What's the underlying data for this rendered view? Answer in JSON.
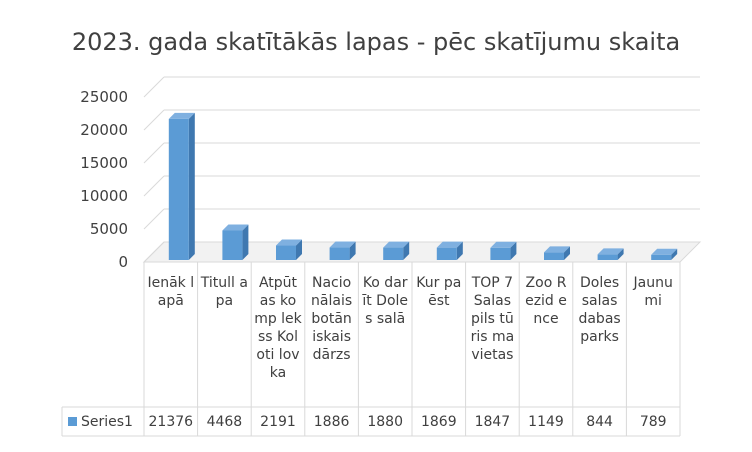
{
  "chart_data": {
    "type": "bar",
    "title": "2023. gada skatītākās lapas - pēc skatījumu skaita",
    "categories": [
      "Ienāk lapā",
      "Titull apa",
      "Atpūt as komp lekss Koloti lovka",
      "Nacio nālais botān iskais dārzs",
      "Ko darīt Doles salā",
      "Kur paēst",
      "TOP 7 Salas pils tūris ma vietas",
      "Zoo Rezid ence",
      "Doles salas dabas parks",
      "Jaunu mi"
    ],
    "series": [
      {
        "name": "Series1",
        "values": [
          21376,
          4468,
          2191,
          1886,
          1880,
          1869,
          1847,
          1149,
          844,
          789
        ]
      }
    ],
    "y_ticks": [
      "0",
      "5000",
      "10000",
      "15000",
      "20000",
      "25000"
    ],
    "value_labels": [
      "21376",
      "4468",
      "2191",
      "1886",
      "1880",
      "1869",
      "1847",
      "1149",
      "844",
      "789"
    ],
    "ylim": [
      0,
      25000
    ],
    "bar_color": "#5b9bd5",
    "grid": true,
    "legend": "data-table-left"
  }
}
